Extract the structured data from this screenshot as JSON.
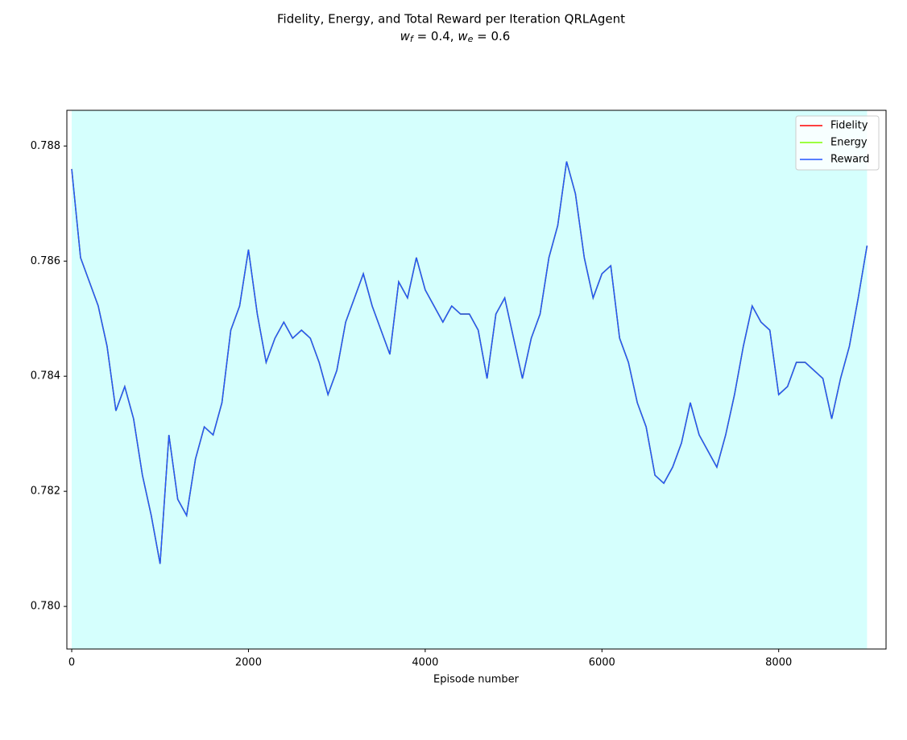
{
  "chart_data": {
    "type": "line",
    "title": "Fidelity, Energy, and Total Reward per Iteration QRLAgent",
    "weights": [
      {
        "symbol": "w",
        "sub": "f",
        "value": 0.4
      },
      {
        "symbol": "w",
        "sub": "e",
        "value": 0.6
      }
    ],
    "xlabel": "Episode number",
    "x": [
      0,
      100,
      200,
      300,
      400,
      500,
      600,
      700,
      800,
      900,
      1000,
      1100,
      1200,
      1300,
      1400,
      1500,
      1600,
      1700,
      1800,
      1900,
      2000,
      2100,
      2200,
      2300,
      2400,
      2500,
      2600,
      2700,
      2800,
      2900,
      3000,
      3100,
      3200,
      3300,
      3400,
      3500,
      3600,
      3700,
      3800,
      3900,
      4000,
      4100,
      4200,
      4300,
      4400,
      4500,
      4600,
      4700,
      4800,
      4900,
      5000,
      5100,
      5200,
      5300,
      5400,
      5500,
      5600,
      5700,
      5800,
      5900,
      6000,
      6100,
      6200,
      6300,
      6400,
      6500,
      6600,
      6700,
      6800,
      6900,
      7000,
      7100,
      7200,
      7300,
      7400,
      7500,
      7600,
      7700,
      7800,
      7900,
      8000,
      8100,
      8200,
      8300,
      8400,
      8500,
      8600,
      8700,
      8800,
      8900,
      9000
    ],
    "series": [
      {
        "name": "Fidelity",
        "color": "#ff0000",
        "values": [
          0.7876,
          0.78606,
          0.78564,
          0.78522,
          0.78452,
          0.7834,
          0.78382,
          0.78326,
          0.78228,
          0.78158,
          0.78074,
          0.78298,
          0.78186,
          0.78158,
          0.78256,
          0.78312,
          0.78298,
          0.78354,
          0.7848,
          0.78522,
          0.7862,
          0.78508,
          0.78424,
          0.78466,
          0.78494,
          0.78466,
          0.7848,
          0.78466,
          0.78424,
          0.78368,
          0.7841,
          0.78494,
          0.78536,
          0.78578,
          0.78522,
          0.7848,
          0.78438,
          0.78564,
          0.78536,
          0.78606,
          0.7855,
          0.78522,
          0.78494,
          0.78522,
          0.78508,
          0.78508,
          0.7848,
          0.78396,
          0.78508,
          0.78536,
          0.78466,
          0.78396,
          0.78466,
          0.78508,
          0.78606,
          0.78662,
          0.78773,
          0.78717,
          0.78606,
          0.78536,
          0.78578,
          0.78592,
          0.78466,
          0.78424,
          0.78354,
          0.78312,
          0.78228,
          0.78214,
          0.78242,
          0.78284,
          0.78354,
          0.78298,
          0.7827,
          0.78242,
          0.78298,
          0.78368,
          0.78452,
          0.78522,
          0.78494,
          0.7848,
          0.78368,
          0.78382,
          0.78424,
          0.78424,
          0.7841,
          0.78396,
          0.78326,
          0.78396,
          0.78452,
          0.78536,
          0.78627
        ]
      },
      {
        "name": "Energy",
        "color": "#7fff00",
        "values": [
          0.7876,
          0.78606,
          0.78564,
          0.78522,
          0.78452,
          0.7834,
          0.78382,
          0.78326,
          0.78228,
          0.78158,
          0.78074,
          0.78298,
          0.78186,
          0.78158,
          0.78256,
          0.78312,
          0.78298,
          0.78354,
          0.7848,
          0.78522,
          0.7862,
          0.78508,
          0.78424,
          0.78466,
          0.78494,
          0.78466,
          0.7848,
          0.78466,
          0.78424,
          0.78368,
          0.7841,
          0.78494,
          0.78536,
          0.78578,
          0.78522,
          0.7848,
          0.78438,
          0.78564,
          0.78536,
          0.78606,
          0.7855,
          0.78522,
          0.78494,
          0.78522,
          0.78508,
          0.78508,
          0.7848,
          0.78396,
          0.78508,
          0.78536,
          0.78466,
          0.78396,
          0.78466,
          0.78508,
          0.78606,
          0.78662,
          0.78773,
          0.78717,
          0.78606,
          0.78536,
          0.78578,
          0.78592,
          0.78466,
          0.78424,
          0.78354,
          0.78312,
          0.78228,
          0.78214,
          0.78242,
          0.78284,
          0.78354,
          0.78298,
          0.7827,
          0.78242,
          0.78298,
          0.78368,
          0.78452,
          0.78522,
          0.78494,
          0.7848,
          0.78368,
          0.78382,
          0.78424,
          0.78424,
          0.7841,
          0.78396,
          0.78326,
          0.78396,
          0.78452,
          0.78536,
          0.78627
        ]
      },
      {
        "name": "Reward",
        "color": "#2255ff",
        "values": [
          0.7876,
          0.78606,
          0.78564,
          0.78522,
          0.78452,
          0.7834,
          0.78382,
          0.78326,
          0.78228,
          0.78158,
          0.78074,
          0.78298,
          0.78186,
          0.78158,
          0.78256,
          0.78312,
          0.78298,
          0.78354,
          0.7848,
          0.78522,
          0.7862,
          0.78508,
          0.78424,
          0.78466,
          0.78494,
          0.78466,
          0.7848,
          0.78466,
          0.78424,
          0.78368,
          0.7841,
          0.78494,
          0.78536,
          0.78578,
          0.78522,
          0.7848,
          0.78438,
          0.78564,
          0.78536,
          0.78606,
          0.7855,
          0.78522,
          0.78494,
          0.78522,
          0.78508,
          0.78508,
          0.7848,
          0.78396,
          0.78508,
          0.78536,
          0.78466,
          0.78396,
          0.78466,
          0.78508,
          0.78606,
          0.78662,
          0.78773,
          0.78717,
          0.78606,
          0.78536,
          0.78578,
          0.78592,
          0.78466,
          0.78424,
          0.78354,
          0.78312,
          0.78228,
          0.78214,
          0.78242,
          0.78284,
          0.78354,
          0.78298,
          0.7827,
          0.78242,
          0.78298,
          0.78368,
          0.78452,
          0.78522,
          0.78494,
          0.7848,
          0.78368,
          0.78382,
          0.78424,
          0.78424,
          0.7841,
          0.78396,
          0.78326,
          0.78396,
          0.78452,
          0.78536,
          0.78627
        ]
      }
    ],
    "highlight": {
      "x": [
        0,
        9000
      ],
      "color": "#d5fffd"
    },
    "xlim": [
      -55,
      9215
    ],
    "ylim": [
      0.77926,
      0.78862
    ],
    "xticks": [
      0,
      2000,
      4000,
      6000,
      8000
    ],
    "yticks": [
      {
        "value": 0.78,
        "label": "0.780"
      },
      0.782,
      0.784,
      0.786,
      0.788
    ],
    "legend": "upper right"
  }
}
